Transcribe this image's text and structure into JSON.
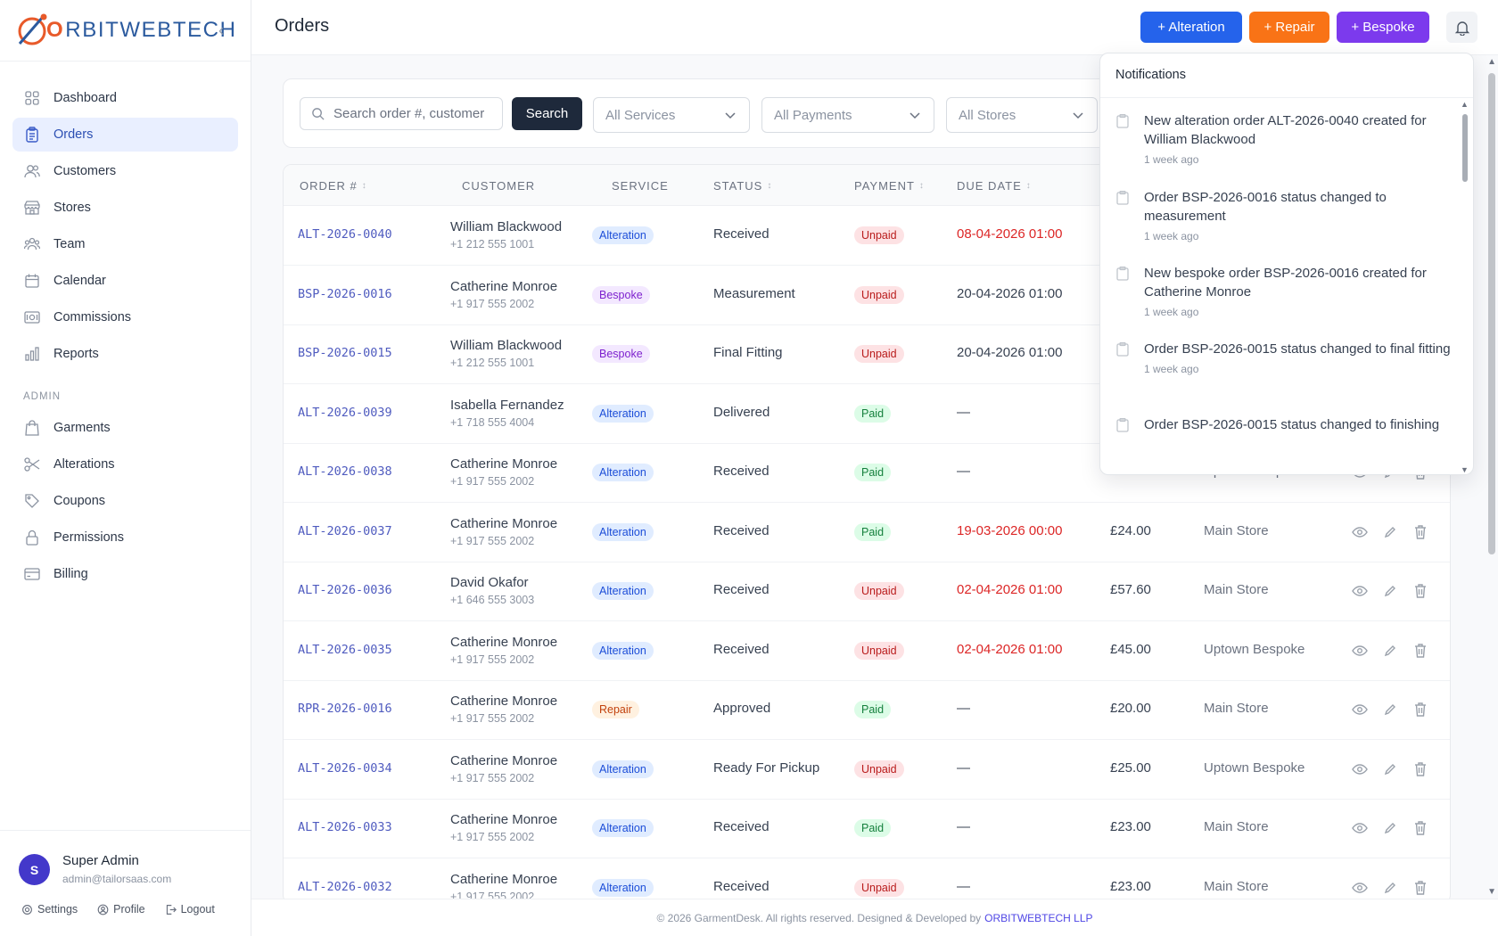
{
  "brand": {
    "o": "O",
    "rest": "RBITWEBTECH"
  },
  "nav": {
    "items": [
      {
        "label": "Dashboard"
      },
      {
        "label": "Orders"
      },
      {
        "label": "Customers"
      },
      {
        "label": "Stores"
      },
      {
        "label": "Team"
      },
      {
        "label": "Calendar"
      },
      {
        "label": "Commissions"
      },
      {
        "label": "Reports"
      }
    ],
    "admin_section": "ADMIN",
    "admin_items": [
      {
        "label": "Garments"
      },
      {
        "label": "Alterations"
      },
      {
        "label": "Coupons"
      },
      {
        "label": "Permissions"
      },
      {
        "label": "Billing"
      }
    ]
  },
  "user": {
    "initial": "S",
    "name": "Super Admin",
    "email": "admin@tailorsaas.com",
    "settings": "Settings",
    "profile": "Profile",
    "logout": "Logout"
  },
  "header": {
    "title": "Orders",
    "btn_alteration": "+ Alteration",
    "btn_repair": "+ Repair",
    "btn_bespoke": "+ Bespoke"
  },
  "filters": {
    "search_placeholder": "Search order #, customer",
    "search_button": "Search",
    "services": "All Services",
    "payments": "All Payments",
    "stores": "All Stores"
  },
  "columns": {
    "order": "ORDER #",
    "customer": "CUSTOMER",
    "service": "SERVICE",
    "status": "STATUS",
    "payment": "PAYMENT",
    "due": "DUE DATE"
  },
  "orders": [
    {
      "no": "ALT-2026-0040",
      "name": "William Blackwood",
      "phone": "+1 212 555 1001",
      "service": "Alteration",
      "status": "Received",
      "payment": "Unpaid",
      "due": "08-04-2026 01:00",
      "amount": "",
      "store": ""
    },
    {
      "no": "BSP-2026-0016",
      "name": "Catherine Monroe",
      "phone": "+1 917 555 2002",
      "service": "Bespoke",
      "status": "Measurement",
      "payment": "Unpaid",
      "due": "20-04-2026 01:00",
      "amount": "",
      "store": ""
    },
    {
      "no": "BSP-2026-0015",
      "name": "William Blackwood",
      "phone": "+1 212 555 1001",
      "service": "Bespoke",
      "status": "Final Fitting",
      "payment": "Unpaid",
      "due": "20-04-2026 01:00",
      "amount": "",
      "store": ""
    },
    {
      "no": "ALT-2026-0039",
      "name": "Isabella Fernandez",
      "phone": "+1 718 555 4004",
      "service": "Alteration",
      "status": "Delivered",
      "payment": "Paid",
      "due": "—",
      "amount": "",
      "store": ""
    },
    {
      "no": "ALT-2026-0038",
      "name": "Catherine Monroe",
      "phone": "+1 917 555 2002",
      "service": "Alteration",
      "status": "Received",
      "payment": "Paid",
      "due": "—",
      "amount": "£44.00",
      "store": "Uptown Bespoke"
    },
    {
      "no": "ALT-2026-0037",
      "name": "Catherine Monroe",
      "phone": "+1 917 555 2002",
      "service": "Alteration",
      "status": "Received",
      "payment": "Paid",
      "due": "19-03-2026 00:00",
      "amount": "£24.00",
      "store": "Main Store"
    },
    {
      "no": "ALT-2026-0036",
      "name": "David Okafor",
      "phone": "+1 646 555 3003",
      "service": "Alteration",
      "status": "Received",
      "payment": "Unpaid",
      "due": "02-04-2026 01:00",
      "amount": "£57.60",
      "store": "Main Store"
    },
    {
      "no": "ALT-2026-0035",
      "name": "Catherine Monroe",
      "phone": "+1 917 555 2002",
      "service": "Alteration",
      "status": "Received",
      "payment": "Unpaid",
      "due": "02-04-2026 01:00",
      "amount": "£45.00",
      "store": "Uptown Bespoke"
    },
    {
      "no": "RPR-2026-0016",
      "name": "Catherine Monroe",
      "phone": "+1 917 555 2002",
      "service": "Repair",
      "status": "Approved",
      "payment": "Paid",
      "due": "—",
      "amount": "£20.00",
      "store": "Main Store"
    },
    {
      "no": "ALT-2026-0034",
      "name": "Catherine Monroe",
      "phone": "+1 917 555 2002",
      "service": "Alteration",
      "status": "Ready For Pickup",
      "payment": "Unpaid",
      "due": "—",
      "amount": "£25.00",
      "store": "Uptown Bespoke"
    },
    {
      "no": "ALT-2026-0033",
      "name": "Catherine Monroe",
      "phone": "+1 917 555 2002",
      "service": "Alteration",
      "status": "Received",
      "payment": "Paid",
      "due": "—",
      "amount": "£23.00",
      "store": "Main Store"
    },
    {
      "no": "ALT-2026-0032",
      "name": "Catherine Monroe",
      "phone": "+1 917 555 2002",
      "service": "Alteration",
      "status": "Received",
      "payment": "Unpaid",
      "due": "—",
      "amount": "£23.00",
      "store": "Main Store"
    }
  ],
  "notifications": {
    "title": "Notifications",
    "items": [
      {
        "text": "New alteration order ALT-2026-0040 created for William Blackwood",
        "time": "1 week ago"
      },
      {
        "text": "Order BSP-2026-0016 status changed to measurement",
        "time": "1 week ago"
      },
      {
        "text": "New bespoke order BSP-2026-0016 created for Catherine Monroe",
        "time": "1 week ago"
      },
      {
        "text": "Order BSP-2026-0015 status changed to final fitting",
        "time": "1 week ago"
      },
      {
        "text": "Order BSP-2026-0015 status changed to finishing",
        "time": ""
      }
    ]
  },
  "footer": {
    "text": "© 2026 GarmentDesk. All rights reserved. Designed & Developed by",
    "link": "ORBITWEBTECH LLP"
  }
}
